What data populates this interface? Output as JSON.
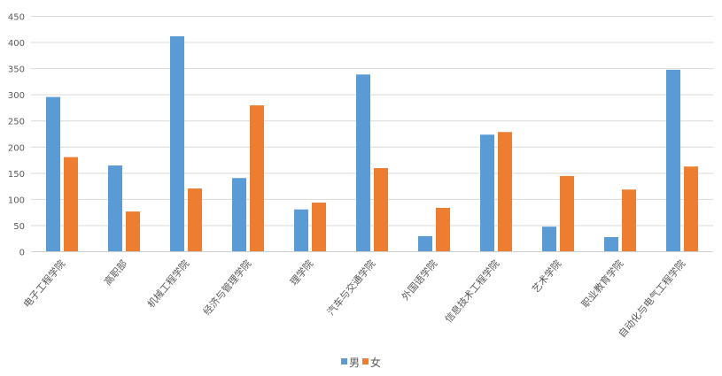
{
  "chart_data": {
    "type": "bar",
    "title": "",
    "xlabel": "",
    "ylabel": "",
    "ylim": [
      0,
      450
    ],
    "ytick_step": 50,
    "yticks": [
      0,
      50,
      100,
      150,
      200,
      250,
      300,
      350,
      400,
      450
    ],
    "grid": true,
    "legend_position": "bottom",
    "categories": [
      "电子工程学院",
      "高职部",
      "机械工程学院",
      "经济与管理学院",
      "理学院",
      "汽车与交通学院",
      "外国语学院",
      "信息技术工程学院",
      "艺术学院",
      "职业教育学院",
      "自动化与电气工程学院"
    ],
    "series": [
      {
        "name": "男",
        "color": "#5b9bd5",
        "values": [
          295,
          164,
          411,
          140,
          80,
          338,
          29,
          223,
          47,
          27,
          347
        ]
      },
      {
        "name": "女",
        "color": "#ed7d31",
        "values": [
          180,
          76,
          120,
          279,
          93,
          159,
          83,
          228,
          144,
          118,
          162
        ]
      }
    ]
  }
}
